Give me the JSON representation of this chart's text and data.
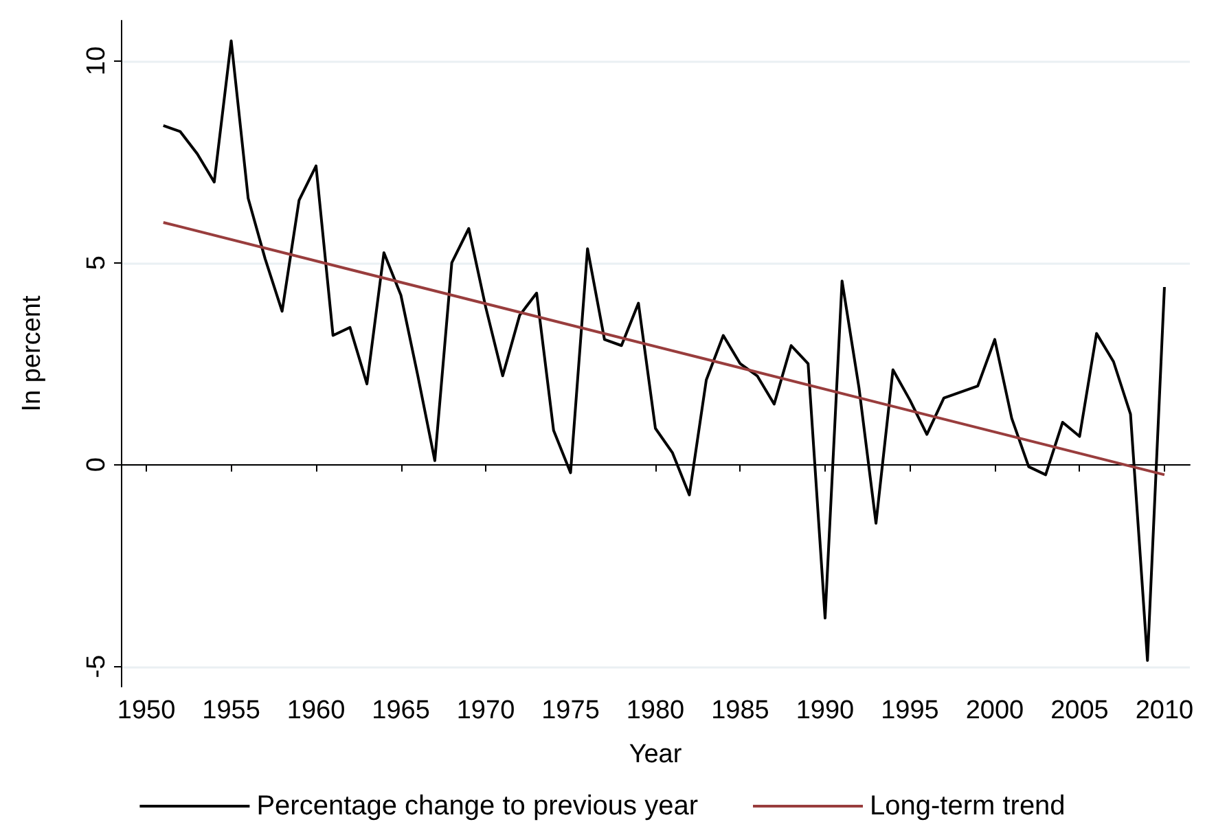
{
  "chart_data": {
    "type": "line",
    "xlabel": "Year",
    "ylabel": "In percent",
    "xlim": [
      1948.5,
      2011.5
    ],
    "xticks": [
      1950,
      1955,
      1960,
      1965,
      1970,
      1975,
      1980,
      1985,
      1990,
      1995,
      2000,
      2005,
      2010
    ],
    "ylim": [
      -5.5,
      11
    ],
    "yticks": [
      -5,
      0,
      5,
      10
    ],
    "grid": "y",
    "legend": "bottom",
    "marker": "none",
    "line_style": "solid",
    "series": [
      {
        "name": "Percentage change to previous year",
        "color": "#000000",
        "x": [
          1951,
          1952,
          1953,
          1954,
          1955,
          1956,
          1957,
          1958,
          1959,
          1960,
          1961,
          1962,
          1963,
          1964,
          1965,
          1966,
          1967,
          1968,
          1969,
          1970,
          1971,
          1972,
          1973,
          1974,
          1975,
          1976,
          1977,
          1978,
          1979,
          1980,
          1981,
          1982,
          1983,
          1984,
          1985,
          1986,
          1987,
          1988,
          1989,
          1990,
          1991,
          1992,
          1993,
          1994,
          1995,
          1996,
          1997,
          1998,
          1999,
          2000,
          2001,
          2002,
          2003,
          2004,
          2005,
          2006,
          2007,
          2008,
          2009,
          2010
        ],
        "values": [
          8.4,
          8.25,
          7.7,
          7.0,
          10.5,
          6.6,
          5.1,
          3.8,
          6.55,
          7.4,
          3.2,
          3.4,
          2.0,
          5.25,
          4.2,
          2.2,
          0.1,
          5.0,
          5.85,
          3.9,
          2.2,
          3.7,
          4.25,
          0.85,
          -0.2,
          5.35,
          3.1,
          2.95,
          4.0,
          0.9,
          0.3,
          -0.75,
          2.1,
          3.2,
          2.5,
          2.2,
          1.5,
          2.95,
          2.5,
          -3.8,
          4.55,
          1.9,
          -1.45,
          2.35,
          1.6,
          0.75,
          1.65,
          1.8,
          1.95,
          3.1,
          1.15,
          -0.05,
          -0.25,
          1.05,
          0.7,
          3.25,
          2.55,
          1.25,
          -4.85,
          4.4
        ]
      },
      {
        "name": "Long-term trend",
        "color": "#993d3d",
        "x": [
          1951,
          2010
        ],
        "values": [
          6.0,
          -0.25
        ]
      }
    ]
  }
}
